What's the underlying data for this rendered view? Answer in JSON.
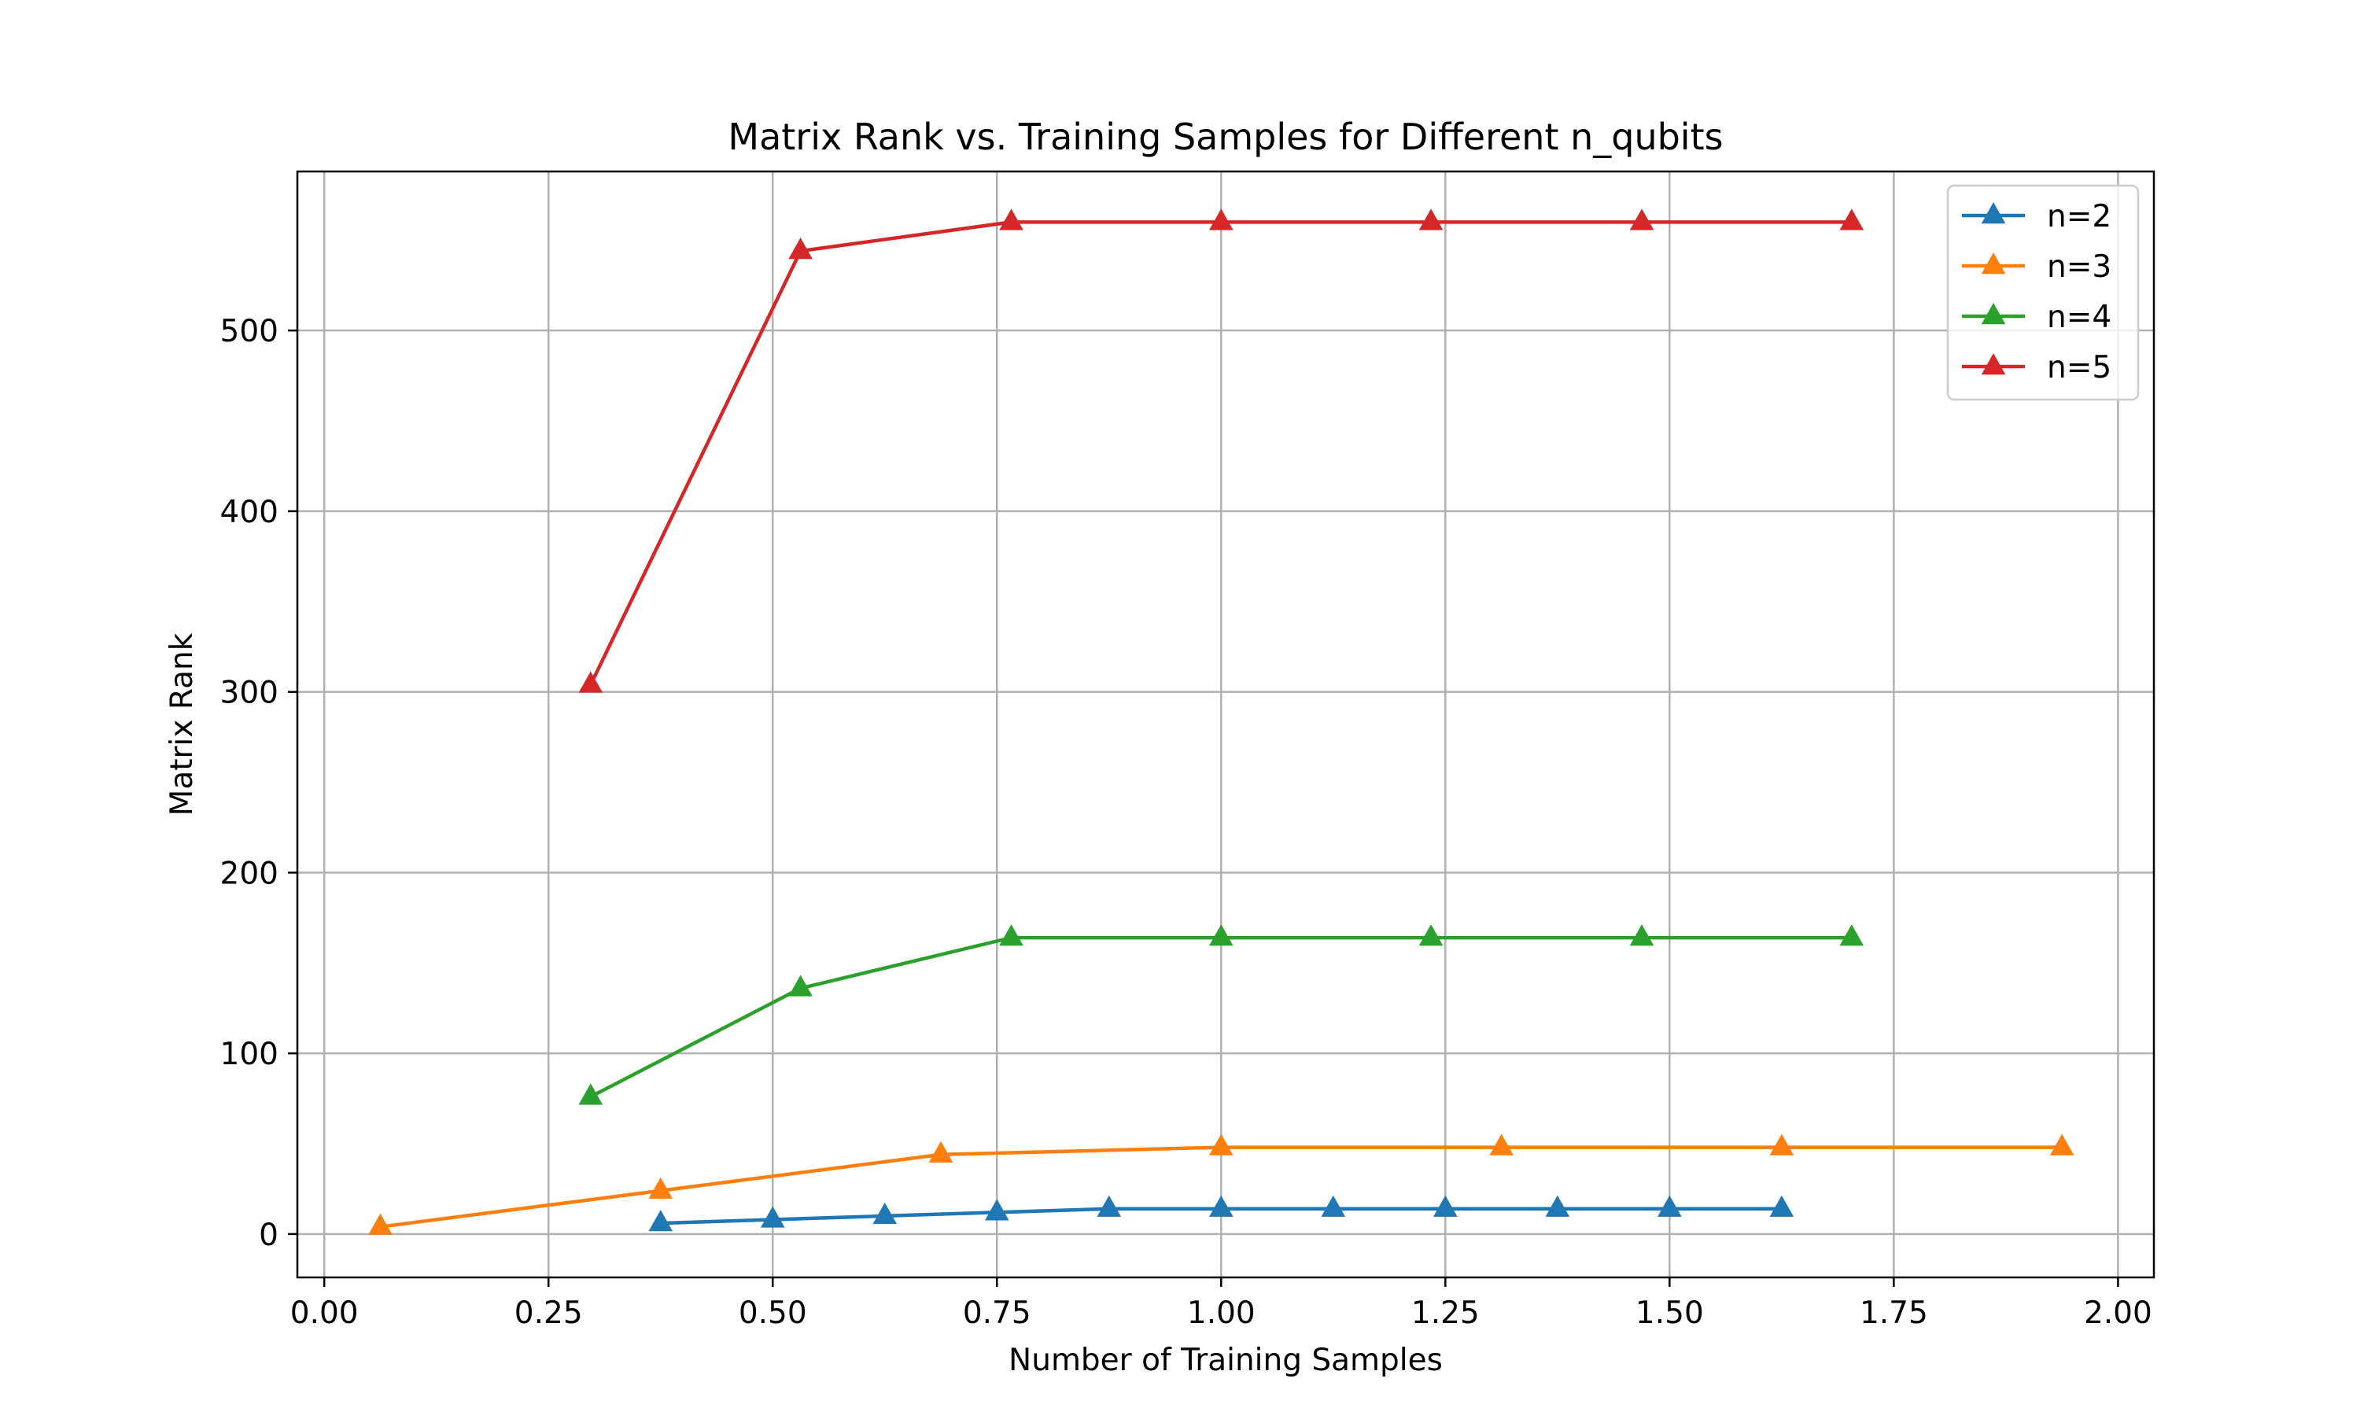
{
  "chart_data": {
    "type": "line",
    "title": "Matrix Rank vs. Training Samples for Different n_qubits",
    "xlabel": "Number of Training Samples",
    "ylabel": "Matrix Rank",
    "xlim": [
      -0.03,
      2.04
    ],
    "ylim": [
      -24,
      588
    ],
    "xticks": [
      0.0,
      0.25,
      0.5,
      0.75,
      1.0,
      1.25,
      1.5,
      1.75,
      2.0
    ],
    "xtick_labels": [
      "0.00",
      "0.25",
      "0.50",
      "0.75",
      "1.00",
      "1.25",
      "1.50",
      "1.75",
      "2.00"
    ],
    "yticks": [
      0,
      100,
      200,
      300,
      400,
      500
    ],
    "ytick_labels": [
      "0",
      "100",
      "200",
      "300",
      "400",
      "500"
    ],
    "grid": true,
    "legend_position": "top-right",
    "marker": "triangle-up",
    "series": [
      {
        "name": "n=2",
        "color": "#1f77b4",
        "x": [
          0.375,
          0.5,
          0.625,
          0.75,
          0.875,
          1.0,
          1.125,
          1.25,
          1.375,
          1.5,
          1.625
        ],
        "y": [
          6,
          8,
          10,
          12,
          14,
          14,
          14,
          14,
          14,
          14,
          14
        ]
      },
      {
        "name": "n=3",
        "color": "#ff7f0e",
        "x": [
          0.0625,
          0.375,
          0.6875,
          1.0,
          1.3125,
          1.625,
          1.9375
        ],
        "y": [
          4,
          24,
          44,
          48,
          48,
          48,
          48
        ]
      },
      {
        "name": "n=4",
        "color": "#2ca02c",
        "x": [
          0.297,
          0.531,
          0.766,
          1.0,
          1.234,
          1.469,
          1.703
        ],
        "y": [
          76,
          136,
          164,
          164,
          164,
          164,
          164
        ]
      },
      {
        "name": "n=5",
        "color": "#d62728",
        "x": [
          0.297,
          0.531,
          0.766,
          1.0,
          1.234,
          1.469,
          1.703
        ],
        "y": [
          304,
          544,
          560,
          560,
          560,
          560,
          560
        ]
      }
    ]
  }
}
